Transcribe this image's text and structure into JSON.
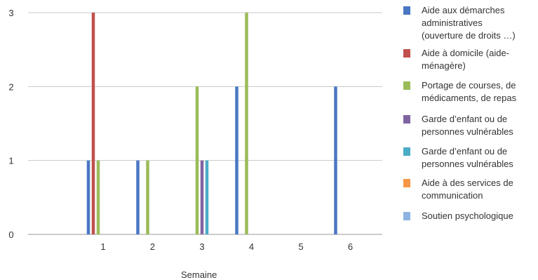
{
  "chart_data": {
    "type": "bar",
    "title": "",
    "xlabel": "Semaine",
    "ylabel": "",
    "categories": [
      "1",
      "2",
      "3",
      "4",
      "5",
      "6"
    ],
    "ylim": [
      0,
      3
    ],
    "yticks": [
      0,
      1,
      2,
      3
    ],
    "grid": true,
    "legend_position": "right",
    "series": [
      {
        "name": "Aide aux démarches\nadministratives\n(ouverture de droits …)",
        "color": "#4a77c4",
        "values": [
          1,
          1,
          0,
          2,
          0,
          2
        ]
      },
      {
        "name": "Aide à domicile (aide-\nménagère)",
        "color": "#c0504d",
        "values": [
          3,
          0,
          0,
          0,
          0,
          0
        ]
      },
      {
        "name": "Portage de courses, de\nmédicaments, de repas",
        "color": "#9bbb59",
        "values": [
          1,
          1,
          2,
          3,
          0,
          0
        ]
      },
      {
        "name": "Garde d’enfant ou de\npersonnes vulnérables",
        "color": "#8064a2",
        "values": [
          0,
          0,
          1,
          0,
          0,
          0
        ]
      },
      {
        "name": "Garde d’enfant ou de\npersonnes vulnérables",
        "color": "#4bacc6",
        "values": [
          0,
          0,
          1,
          0,
          0,
          0
        ]
      },
      {
        "name": "Aide à des services de\ncommunication",
        "color": "#f79646",
        "values": [
          0,
          0,
          0,
          0,
          0,
          0
        ]
      },
      {
        "name": "Soutien psychologique",
        "color": "#8db3e2",
        "values": [
          0,
          0,
          0,
          0,
          0,
          0
        ]
      }
    ]
  }
}
